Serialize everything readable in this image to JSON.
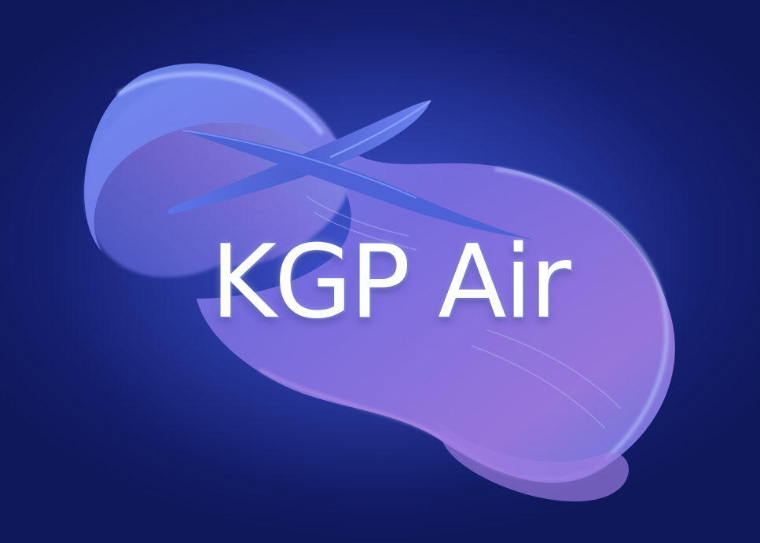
{
  "logo": {
    "brand_name": "KGP Air",
    "emblem_icon": "airplane-ribbon-swirl-icon"
  },
  "colors": {
    "background_dark": "#141f6e",
    "background_glow": "#2a3aa8",
    "ribbon_blue": "#5b7bf0",
    "ribbon_violet": "#9a7ee6",
    "ribbon_light": "#a6c0ff",
    "text": "#ffffff"
  }
}
